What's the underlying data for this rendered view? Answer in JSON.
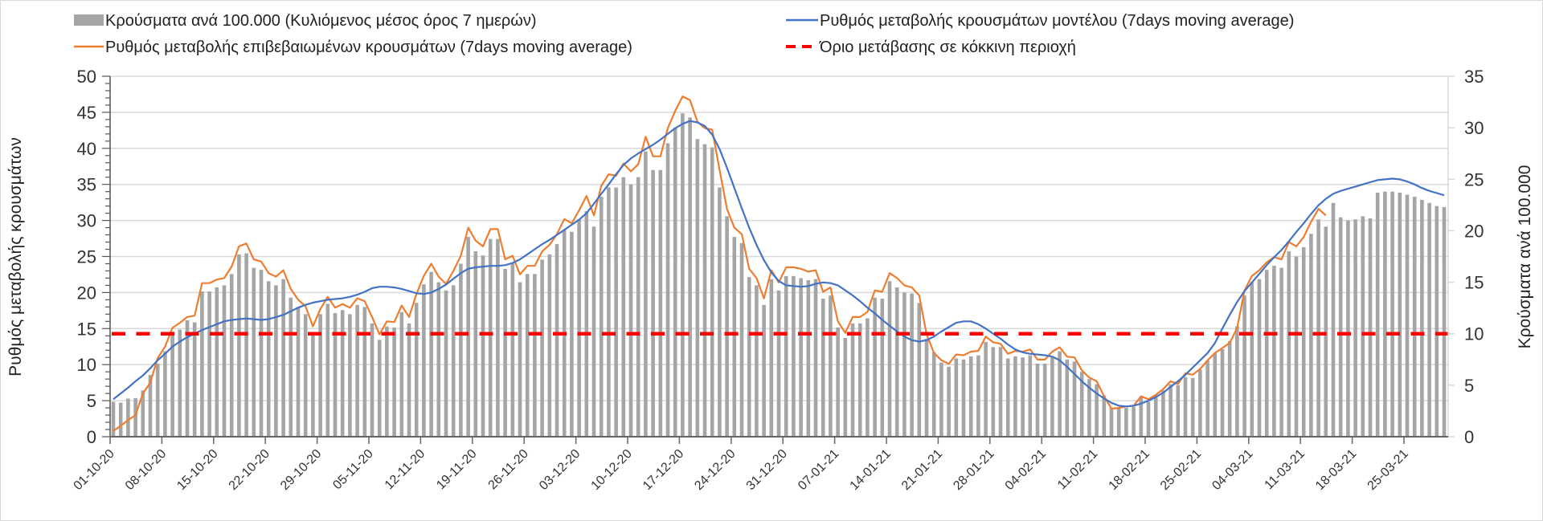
{
  "legend": {
    "bars": "Κρούσματα ανά 100.000 (Κυλιόμενος μέσος όρος 7 ημερών)",
    "confirmed_rate": "Ρυθμός μεταβολής επιβεβαιωμένων κρουσμάτων (7days moving average)",
    "model_rate": "Ρυθμός μεταβολής κρουσμάτων μοντέλου (7days moving average)",
    "threshold": "Όριο μετάβασης σε κόκκινη περιοχή"
  },
  "chart_data": {
    "type": "bar+line",
    "title": "",
    "legend_position": "top",
    "grid": true,
    "start_date": "01-10-20",
    "step_days": 1,
    "x_tick_labels": [
      "01-10-20",
      "08-10-20",
      "15-10-20",
      "22-10-20",
      "29-10-20",
      "05-11-20",
      "12-11-20",
      "19-11-20",
      "26-11-20",
      "03-12-20",
      "10-12-20",
      "17-12-20",
      "24-12-20",
      "31-12-20",
      "07-01-21",
      "14-01-21",
      "21-01-21",
      "28-01-21",
      "04-02-21",
      "11-02-21",
      "18-02-21",
      "25-02-21",
      "04-03-21",
      "11-03-21",
      "18-03-21",
      "25-03-21"
    ],
    "left_axis": {
      "label": "Ρυθμός μεταβολής κρουσμάτων",
      "ylim": [
        0,
        50
      ],
      "ticks": [
        "0",
        "5",
        "10",
        "15",
        "20",
        "25",
        "30",
        "35",
        "40",
        "45",
        "50"
      ]
    },
    "right_axis": {
      "label": "Κρούσματα ανά 100.000",
      "ylim": [
        0,
        35
      ],
      "ticks": [
        "0",
        "5",
        "10",
        "15",
        "20",
        "25",
        "30",
        "35"
      ]
    },
    "series": [
      {
        "name": "Κρούσματα ανά 100.000 (Κυλιόμενος μέσος όρος 7 ημερών)",
        "type": "bar",
        "axis": "right",
        "color": "#a5a5a5",
        "values": [
          3.4,
          3.3,
          3.7,
          3.75,
          4.5,
          6.0,
          7.1,
          8.3,
          10.2,
          10.4,
          11.3,
          11.1,
          14.1,
          14.1,
          14.5,
          14.7,
          15.8,
          17.7,
          17.8,
          16.4,
          16.2,
          15.1,
          14.7,
          15.3,
          13.5,
          12.6,
          11.9,
          9.9,
          11.9,
          12.9,
          12.0,
          12.3,
          11.9,
          12.8,
          12.6,
          11.0,
          9.4,
          10.7,
          10.6,
          12.1,
          11.0,
          13.0,
          14.8,
          16.0,
          15.0,
          14.2,
          14.7,
          16.8,
          19.4,
          18.0,
          17.6,
          19.2,
          19.2,
          16.3,
          16.8,
          15.0,
          15.8,
          15.8,
          17.2,
          17.7,
          18.7,
          20.1,
          19.9,
          21.1,
          21.9,
          20.4,
          23.3,
          24.2,
          24.2,
          25.2,
          24.5,
          25.2,
          27.7,
          25.9,
          25.9,
          28.5,
          30.0,
          31.4,
          31.0,
          28.9,
          28.4,
          28.1,
          24.2,
          21.4,
          19.4,
          18.8,
          15.5,
          14.7,
          12.8,
          15.3,
          14.2,
          15.6,
          15.6,
          15.4,
          15.2,
          15.3,
          13.4,
          13.7,
          10.6,
          9.6,
          11.0,
          11.0,
          11.5,
          13.5,
          13.4,
          15.1,
          14.5,
          14.0,
          13.9,
          13.0,
          9.5,
          8.2,
          7.2,
          6.8,
          7.6,
          7.5,
          7.8,
          7.9,
          9.2,
          8.7,
          8.7,
          7.6,
          7.8,
          7.7,
          7.9,
          7.1,
          7.1,
          7.7,
          8.3,
          7.5,
          7.3,
          6.3,
          5.6,
          5.1,
          4.0,
          2.8,
          2.8,
          2.8,
          2.9,
          3.8,
          3.4,
          4.0,
          4.5,
          5.1,
          5.0,
          5.8,
          5.7,
          6.5,
          7.4,
          8.1,
          8.5,
          9.3,
          10.7,
          13.7,
          15.0,
          15.3,
          16.2,
          16.6,
          16.4,
          18.0,
          17.5,
          18.4,
          19.7,
          21.1,
          20.4,
          22.7,
          21.3,
          21.0,
          21.1,
          21.4,
          21.2,
          23.7,
          23.8,
          23.8,
          23.7,
          23.5,
          23.3,
          23.0,
          22.7,
          22.4,
          22.3
        ]
      },
      {
        "name": "Ρυθμός μεταβολής επιβεβαιωμένων κρουσμάτων (7days moving average)",
        "type": "line",
        "axis": "left",
        "color": "#ed7d31",
        "values": [
          0.8,
          1.5,
          2.3,
          3.0,
          6.0,
          7.5,
          10.9,
          12.5,
          15.1,
          15.8,
          16.6,
          16.8,
          21.3,
          21.3,
          21.8,
          22.0,
          23.6,
          26.4,
          26.8,
          24.6,
          24.3,
          22.7,
          22.2,
          23.1,
          20.5,
          19.0,
          18.1,
          15.3,
          17.7,
          19.4,
          17.9,
          18.4,
          17.9,
          19.2,
          18.8,
          16.6,
          14.2,
          16.0,
          15.9,
          18.2,
          16.6,
          19.8,
          22.3,
          24.0,
          22.2,
          21.2,
          23.0,
          25.1,
          29.0,
          27.2,
          26.4,
          28.8,
          28.8,
          24.6,
          25.1,
          22.5,
          23.7,
          23.7,
          25.7,
          26.6,
          28.1,
          30.2,
          29.6,
          31.4,
          33.4,
          30.7,
          34.8,
          36.4,
          36.2,
          37.9,
          36.8,
          37.8,
          41.6,
          38.9,
          38.9,
          42.8,
          45.2,
          47.2,
          46.7,
          43.7,
          42.8,
          42.6,
          37.0,
          31.6,
          29.0,
          28.1,
          23.3,
          22.0,
          19.2,
          23.1,
          21.4,
          23.5,
          23.5,
          23.3,
          22.9,
          23.1,
          20.1,
          20.7,
          16.0,
          14.4,
          16.6,
          16.6,
          17.3,
          20.3,
          20.1,
          22.7,
          22.0,
          21.0,
          20.7,
          19.6,
          14.2,
          11.6,
          10.6,
          10.1,
          11.4,
          11.3,
          11.8,
          11.9,
          13.9,
          13.1,
          12.9,
          11.5,
          11.9,
          11.8,
          12.1,
          10.7,
          10.7,
          11.8,
          12.4,
          11.1,
          11.0,
          9.2,
          8.2,
          7.7,
          5.6,
          3.9,
          4.0,
          4.2,
          4.3,
          5.6,
          5.2,
          5.8,
          6.6,
          7.7,
          7.3,
          8.8,
          8.6,
          9.4,
          10.6,
          11.6,
          12.3,
          13.0,
          15.1,
          20.3,
          22.3,
          23.1,
          24.2,
          24.9,
          24.6,
          27.0,
          26.4,
          27.7,
          29.8,
          31.6,
          30.7
        ]
      },
      {
        "name": "Ρυθμός μεταβολής κρουσμάτων μοντέλου (7days moving average)",
        "type": "line",
        "axis": "left",
        "color": "#4472c4",
        "values": [
          5.2,
          6.0,
          6.8,
          7.7,
          8.5,
          9.5,
          10.6,
          11.5,
          12.5,
          13.2,
          13.8,
          14.3,
          14.8,
          15.2,
          15.6,
          16.0,
          16.2,
          16.3,
          16.4,
          16.3,
          16.2,
          16.3,
          16.6,
          16.9,
          17.4,
          17.9,
          18.3,
          18.6,
          18.8,
          19.0,
          19.1,
          19.2,
          19.4,
          19.7,
          20.1,
          20.6,
          20.8,
          20.8,
          20.7,
          20.5,
          20.2,
          19.9,
          19.8,
          20.0,
          20.5,
          21.1,
          21.9,
          22.7,
          23.3,
          23.5,
          23.6,
          23.7,
          23.7,
          23.8,
          24.1,
          24.6,
          25.3,
          26.0,
          26.7,
          27.3,
          28.0,
          28.7,
          29.4,
          30.1,
          31.0,
          32.3,
          33.7,
          35.0,
          36.4,
          37.7,
          38.6,
          39.3,
          39.9,
          40.5,
          41.2,
          42.0,
          42.8,
          43.4,
          43.8,
          43.6,
          43.1,
          41.9,
          39.9,
          37.3,
          34.5,
          31.7,
          29.0,
          26.6,
          24.5,
          22.8,
          21.6,
          21.0,
          20.9,
          20.8,
          20.9,
          21.2,
          21.4,
          21.3,
          21.0,
          20.3,
          19.6,
          18.8,
          17.9,
          17.1,
          16.2,
          15.4,
          14.6,
          13.9,
          13.4,
          13.2,
          13.4,
          13.9,
          14.6,
          15.2,
          15.8,
          16.0,
          16.0,
          15.6,
          15.0,
          14.3,
          13.6,
          12.8,
          12.1,
          11.7,
          11.5,
          11.4,
          11.3,
          11.1,
          10.6,
          9.7,
          8.7,
          7.7,
          6.8,
          6.0,
          5.3,
          4.7,
          4.3,
          4.2,
          4.3,
          4.6,
          5.0,
          5.5,
          6.1,
          6.9,
          7.7,
          8.6,
          9.6,
          10.6,
          11.6,
          13.0,
          15.0,
          16.9,
          18.7,
          20.2,
          21.4,
          22.6,
          23.8,
          24.9,
          25.9,
          27.1,
          28.4,
          29.6,
          30.9,
          32.1,
          33.0,
          33.7,
          34.1,
          34.4,
          34.7,
          35.0,
          35.3,
          35.6,
          35.7,
          35.8,
          35.7,
          35.4,
          35.0,
          34.5,
          34.1,
          33.8,
          33.5
        ]
      },
      {
        "name": "Όριο μετάβασης σε κόκκινη περιοχή",
        "type": "hline",
        "axis": "right",
        "color": "#ff0000",
        "value": 10
      }
    ]
  }
}
